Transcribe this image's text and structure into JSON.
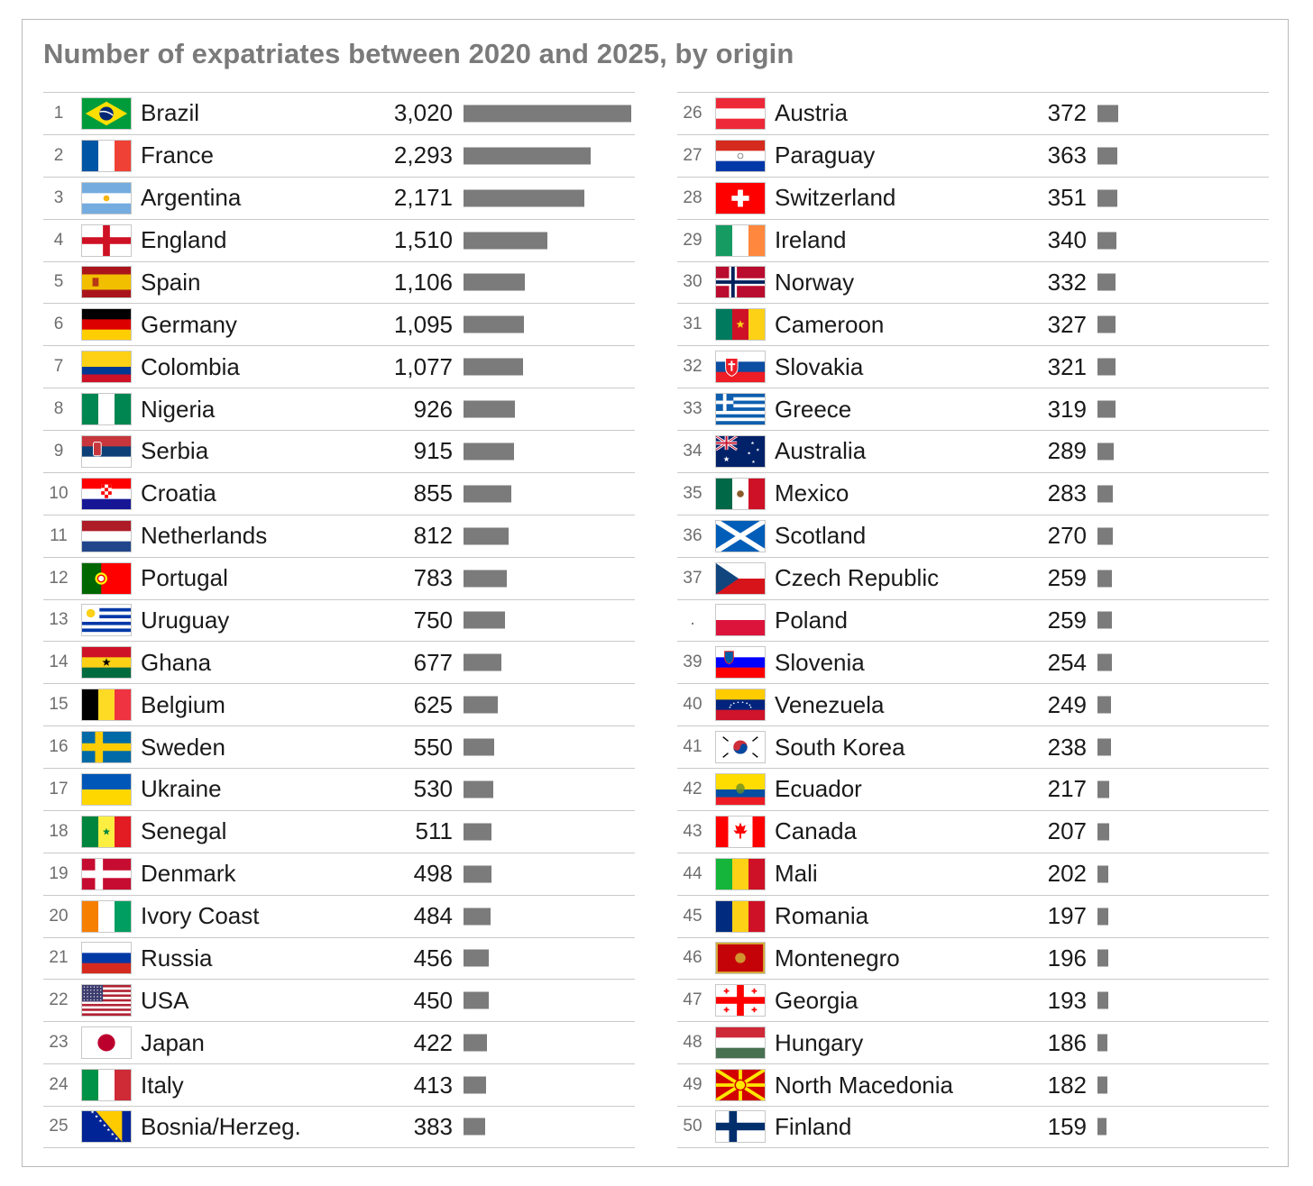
{
  "chart_data": {
    "type": "bar",
    "title": "Number of expatriates between 2020 and 2025, by origin",
    "rows": [
      {
        "rank": "1",
        "country": "Brazil",
        "value": 3020,
        "label": "3,020",
        "flag": "brazil-flag"
      },
      {
        "rank": "2",
        "country": "France",
        "value": 2293,
        "label": "2,293",
        "flag": "france-flag"
      },
      {
        "rank": "3",
        "country": "Argentina",
        "value": 2171,
        "label": "2,171",
        "flag": "argentina-flag"
      },
      {
        "rank": "4",
        "country": "England",
        "value": 1510,
        "label": "1,510",
        "flag": "england-flag"
      },
      {
        "rank": "5",
        "country": "Spain",
        "value": 1106,
        "label": "1,106",
        "flag": "spain-flag"
      },
      {
        "rank": "6",
        "country": "Germany",
        "value": 1095,
        "label": "1,095",
        "flag": "germany-flag"
      },
      {
        "rank": "7",
        "country": "Colombia",
        "value": 1077,
        "label": "1,077",
        "flag": "colombia-flag"
      },
      {
        "rank": "8",
        "country": "Nigeria",
        "value": 926,
        "label": "926",
        "flag": "nigeria-flag"
      },
      {
        "rank": "9",
        "country": "Serbia",
        "value": 915,
        "label": "915",
        "flag": "serbia-flag"
      },
      {
        "rank": "10",
        "country": "Croatia",
        "value": 855,
        "label": "855",
        "flag": "croatia-flag"
      },
      {
        "rank": "11",
        "country": "Netherlands",
        "value": 812,
        "label": "812",
        "flag": "netherlands-flag"
      },
      {
        "rank": "12",
        "country": "Portugal",
        "value": 783,
        "label": "783",
        "flag": "portugal-flag"
      },
      {
        "rank": "13",
        "country": "Uruguay",
        "value": 750,
        "label": "750",
        "flag": "uruguay-flag"
      },
      {
        "rank": "14",
        "country": "Ghana",
        "value": 677,
        "label": "677",
        "flag": "ghana-flag"
      },
      {
        "rank": "15",
        "country": "Belgium",
        "value": 625,
        "label": "625",
        "flag": "belgium-flag"
      },
      {
        "rank": "16",
        "country": "Sweden",
        "value": 550,
        "label": "550",
        "flag": "sweden-flag"
      },
      {
        "rank": "17",
        "country": "Ukraine",
        "value": 530,
        "label": "530",
        "flag": "ukraine-flag"
      },
      {
        "rank": "18",
        "country": "Senegal",
        "value": 511,
        "label": "511",
        "flag": "senegal-flag"
      },
      {
        "rank": "19",
        "country": "Denmark",
        "value": 498,
        "label": "498",
        "flag": "denmark-flag"
      },
      {
        "rank": "20",
        "country": "Ivory Coast",
        "value": 484,
        "label": "484",
        "flag": "ivory-coast-flag"
      },
      {
        "rank": "21",
        "country": "Russia",
        "value": 456,
        "label": "456",
        "flag": "russia-flag"
      },
      {
        "rank": "22",
        "country": "USA",
        "value": 450,
        "label": "450",
        "flag": "usa-flag"
      },
      {
        "rank": "23",
        "country": "Japan",
        "value": 422,
        "label": "422",
        "flag": "japan-flag"
      },
      {
        "rank": "24",
        "country": "Italy",
        "value": 413,
        "label": "413",
        "flag": "italy-flag"
      },
      {
        "rank": "25",
        "country": "Bosnia/Herzeg.",
        "value": 383,
        "label": "383",
        "flag": "bosnia-flag"
      },
      {
        "rank": "26",
        "country": "Austria",
        "value": 372,
        "label": "372",
        "flag": "austria-flag"
      },
      {
        "rank": "27",
        "country": "Paraguay",
        "value": 363,
        "label": "363",
        "flag": "paraguay-flag"
      },
      {
        "rank": "28",
        "country": "Switzerland",
        "value": 351,
        "label": "351",
        "flag": "switzerland-flag"
      },
      {
        "rank": "29",
        "country": "Ireland",
        "value": 340,
        "label": "340",
        "flag": "ireland-flag"
      },
      {
        "rank": "30",
        "country": "Norway",
        "value": 332,
        "label": "332",
        "flag": "norway-flag"
      },
      {
        "rank": "31",
        "country": "Cameroon",
        "value": 327,
        "label": "327",
        "flag": "cameroon-flag"
      },
      {
        "rank": "32",
        "country": "Slovakia",
        "value": 321,
        "label": "321",
        "flag": "slovakia-flag"
      },
      {
        "rank": "33",
        "country": "Greece",
        "value": 319,
        "label": "319",
        "flag": "greece-flag"
      },
      {
        "rank": "34",
        "country": "Australia",
        "value": 289,
        "label": "289",
        "flag": "australia-flag"
      },
      {
        "rank": "35",
        "country": "Mexico",
        "value": 283,
        "label": "283",
        "flag": "mexico-flag"
      },
      {
        "rank": "36",
        "country": "Scotland",
        "value": 270,
        "label": "270",
        "flag": "scotland-flag"
      },
      {
        "rank": "37",
        "country": "Czech Republic",
        "value": 259,
        "label": "259",
        "flag": "czech-flag"
      },
      {
        "rank": ".",
        "country": "Poland",
        "value": 259,
        "label": "259",
        "flag": "poland-flag"
      },
      {
        "rank": "39",
        "country": "Slovenia",
        "value": 254,
        "label": "254",
        "flag": "slovenia-flag"
      },
      {
        "rank": "40",
        "country": "Venezuela",
        "value": 249,
        "label": "249",
        "flag": "venezuela-flag"
      },
      {
        "rank": "41",
        "country": "South Korea",
        "value": 238,
        "label": "238",
        "flag": "south-korea-flag"
      },
      {
        "rank": "42",
        "country": "Ecuador",
        "value": 217,
        "label": "217",
        "flag": "ecuador-flag"
      },
      {
        "rank": "43",
        "country": "Canada",
        "value": 207,
        "label": "207",
        "flag": "canada-flag"
      },
      {
        "rank": "44",
        "country": "Mali",
        "value": 202,
        "label": "202",
        "flag": "mali-flag"
      },
      {
        "rank": "45",
        "country": "Romania",
        "value": 197,
        "label": "197",
        "flag": "romania-flag"
      },
      {
        "rank": "46",
        "country": "Montenegro",
        "value": 196,
        "label": "196",
        "flag": "montenegro-flag"
      },
      {
        "rank": "47",
        "country": "Georgia",
        "value": 193,
        "label": "193",
        "flag": "georgia-flag"
      },
      {
        "rank": "48",
        "country": "Hungary",
        "value": 186,
        "label": "186",
        "flag": "hungary-flag"
      },
      {
        "rank": "49",
        "country": "North Macedonia",
        "value": 182,
        "label": "182",
        "flag": "north-macedonia-flag"
      },
      {
        "rank": "50",
        "country": "Finland",
        "value": 159,
        "label": "159",
        "flag": "finland-flag"
      }
    ]
  },
  "colors": {
    "title": "#7a7a7a",
    "bar": "#7b7b7b",
    "rule": "#c9c9c9",
    "rank": "#6e6e6e",
    "text": "#1a1a1a"
  }
}
